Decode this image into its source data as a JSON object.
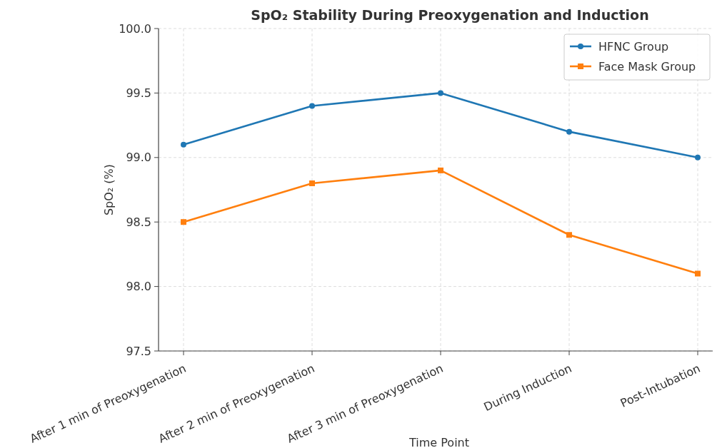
{
  "chart_data": {
    "type": "line",
    "title": "SpO₂ Stability During Preoxygenation and Induction",
    "xlabel": "Time Point",
    "ylabel": "SpO₂ (%)",
    "categories": [
      "After 1 min of Preoxygenation",
      "After 2 min of Preoxygenation",
      "After 3 min of Preoxygenation",
      "During Induction",
      "Post-Intubation"
    ],
    "series": [
      {
        "name": "HFNC Group",
        "color": "#1f77b4",
        "marker": "circle",
        "values": [
          99.1,
          99.4,
          99.5,
          99.2,
          99.0
        ]
      },
      {
        "name": "Face Mask Group",
        "color": "#ff7f0e",
        "marker": "square",
        "values": [
          98.5,
          98.8,
          98.9,
          98.4,
          98.1
        ]
      }
    ],
    "ylim": [
      97.5,
      100.0
    ],
    "yticks": [
      {
        "value": 97.5,
        "label": "97.5"
      },
      {
        "value": 98.0,
        "label": "98.0"
      },
      {
        "value": 98.5,
        "label": "98.5"
      },
      {
        "value": 99.0,
        "label": "99.0"
      },
      {
        "value": 99.5,
        "label": "99.5"
      },
      {
        "value": 100.0,
        "label": "100.0"
      }
    ],
    "grid": true,
    "legend": "top right",
    "line_style": "solid"
  }
}
